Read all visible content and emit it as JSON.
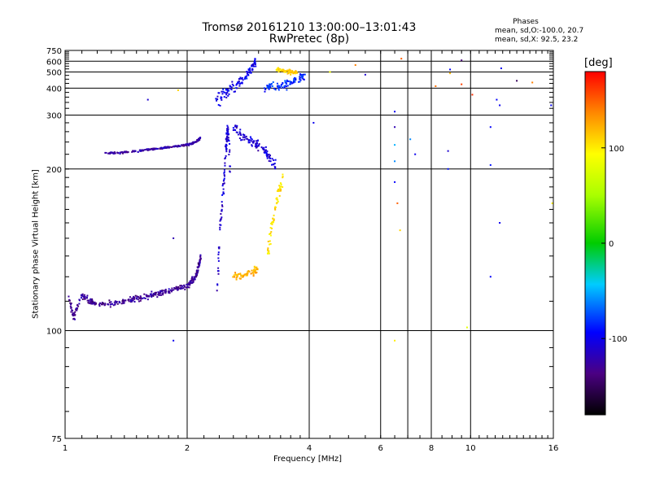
{
  "header": {
    "title_line1": "Tromsø 20161210 13:00:00–13:01:43",
    "title_line2": "RwPretec (8p)",
    "phases_heading": "Phases",
    "phases_line1": "mean, sd,O:-100.0, 20.7",
    "phases_line2": "mean, sd,X:  92.5, 23.2"
  },
  "colorbar": {
    "label": "[deg]",
    "min": -180,
    "max": 180,
    "ticks": [
      100,
      0,
      -100
    ],
    "tick_labels": [
      "100",
      "0",
      "-100"
    ]
  },
  "chart_data": {
    "type": "scatter",
    "title": "Tromsø 20161210 13:00:00–13:01:43",
    "subtitle": "RwPretec (8p)",
    "xlabel": "Frequency [MHz]",
    "ylabel": "Stationary phase Virtual Height [km]",
    "x_scale": "log",
    "y_scale": "reciprocal",
    "xlim": [
      1,
      16
    ],
    "ylim": [
      75,
      750
    ],
    "x_ticks": [
      1,
      2,
      4,
      6,
      8,
      10,
      16
    ],
    "x_tick_labels": [
      "1",
      "2",
      "4",
      "6",
      "8",
      "10",
      "16"
    ],
    "y_ticks": [
      75,
      100,
      200,
      300,
      400,
      500,
      600,
      750
    ],
    "y_tick_labels": [
      "75",
      "100",
      "200",
      "300",
      "400",
      "500",
      "600",
      "750"
    ],
    "grid": true,
    "color_by": "phase [deg]",
    "traces": [
      {
        "x": [
          1.02,
          1.05,
          1.1,
          1.15,
          1.2,
          1.3,
          1.4,
          1.5,
          1.6,
          1.7,
          1.8,
          1.9,
          2.0,
          2.05,
          2.1,
          2.13,
          2.16
        ],
        "y": [
          112,
          104,
          112,
          110,
          109,
          109,
          110,
          111,
          112,
          113,
          114,
          115,
          116,
          118,
          120,
          124,
          130
        ],
        "phase": -130,
        "spread_y": 0.015
      },
      {
        "x": [
          1.25,
          1.35,
          1.45,
          1.55,
          1.65,
          1.75,
          1.85,
          1.95,
          2.05,
          2.12,
          2.16
        ],
        "y": [
          222,
          222,
          224,
          226,
          228,
          230,
          232,
          234,
          237,
          242,
          248
        ],
        "phase": -125,
        "spread_y": 0.01
      },
      {
        "x": [
          2.37,
          2.42,
          2.47,
          2.5,
          2.52,
          2.55
        ],
        "y": [
          115,
          150,
          190,
          240,
          270,
          200
        ],
        "phase": -110,
        "spread_y": 0.06
      },
      {
        "x": [
          2.6,
          2.75,
          2.9,
          3.0,
          3.15,
          3.3
        ],
        "y": [
          270,
          250,
          240,
          235,
          220,
          205
        ],
        "phase": -110,
        "spread_y": 0.05
      },
      {
        "x": [
          2.35,
          2.5,
          2.65,
          2.8,
          2.9,
          2.95
        ],
        "y": [
          350,
          380,
          420,
          470,
          540,
          600
        ],
        "phase": -100,
        "spread_y": 0.1
      },
      {
        "x": [
          3.1,
          3.3,
          3.5,
          3.7,
          3.9
        ],
        "y": [
          400,
          410,
          420,
          440,
          470
        ],
        "phase": -85,
        "spread_y": 0.08
      },
      {
        "x": [
          3.3,
          3.45,
          3.6,
          3.75
        ],
        "y": [
          520,
          510,
          500,
          495
        ],
        "phase": 110,
        "spread_y": 0.05
      },
      {
        "x": [
          3.15,
          3.25,
          3.35,
          3.45
        ],
        "y": [
          130,
          150,
          170,
          190
        ],
        "phase": 105,
        "spread_y": 0.05
      },
      {
        "x": [
          2.6,
          2.75,
          2.9,
          3.0
        ],
        "y": [
          120,
          121,
          122,
          124
        ],
        "phase": 120,
        "spread_y": 0.02
      }
    ],
    "scattered_points": [
      {
        "x": 1.6,
        "y": 350,
        "phase": -110
      },
      {
        "x": 1.9,
        "y": 390,
        "phase": 110
      },
      {
        "x": 1.85,
        "y": 140,
        "phase": -120
      },
      {
        "x": 1.85,
        "y": 97,
        "phase": -100
      },
      {
        "x": 4.1,
        "y": 280,
        "phase": -100
      },
      {
        "x": 4.5,
        "y": 500,
        "phase": 90
      },
      {
        "x": 5.2,
        "y": 560,
        "phase": 140
      },
      {
        "x": 5.5,
        "y": 480,
        "phase": -110
      },
      {
        "x": 6.5,
        "y": 310,
        "phase": -100
      },
      {
        "x": 6.5,
        "y": 270,
        "phase": -120
      },
      {
        "x": 6.5,
        "y": 235,
        "phase": -50
      },
      {
        "x": 6.5,
        "y": 210,
        "phase": -60
      },
      {
        "x": 6.5,
        "y": 185,
        "phase": -95
      },
      {
        "x": 6.6,
        "y": 165,
        "phase": 150
      },
      {
        "x": 6.7,
        "y": 145,
        "phase": 110
      },
      {
        "x": 6.75,
        "y": 630,
        "phase": 150
      },
      {
        "x": 6.5,
        "y": 97,
        "phase": 100
      },
      {
        "x": 7.1,
        "y": 245,
        "phase": -60
      },
      {
        "x": 7.3,
        "y": 220,
        "phase": -100
      },
      {
        "x": 8.2,
        "y": 410,
        "phase": 145
      },
      {
        "x": 8.8,
        "y": 225,
        "phase": -110
      },
      {
        "x": 8.8,
        "y": 200,
        "phase": -90
      },
      {
        "x": 8.9,
        "y": 520,
        "phase": -95
      },
      {
        "x": 8.9,
        "y": 490,
        "phase": 120
      },
      {
        "x": 9.5,
        "y": 610,
        "phase": -140
      },
      {
        "x": 9.5,
        "y": 420,
        "phase": 160
      },
      {
        "x": 9.8,
        "y": 101,
        "phase": 80
      },
      {
        "x": 10.1,
        "y": 370,
        "phase": 165
      },
      {
        "x": 11.2,
        "y": 270,
        "phase": -95
      },
      {
        "x": 11.2,
        "y": 205,
        "phase": -90
      },
      {
        "x": 11.2,
        "y": 120,
        "phase": -95
      },
      {
        "x": 11.6,
        "y": 350,
        "phase": -95
      },
      {
        "x": 11.8,
        "y": 330,
        "phase": -100
      },
      {
        "x": 11.8,
        "y": 150,
        "phase": -100
      },
      {
        "x": 11.9,
        "y": 530,
        "phase": -100
      },
      {
        "x": 13.0,
        "y": 440,
        "phase": -150
      },
      {
        "x": 14.2,
        "y": 430,
        "phase": 140
      },
      {
        "x": 15.8,
        "y": 330,
        "phase": -95
      },
      {
        "x": 15.9,
        "y": 165,
        "phase": 100
      }
    ]
  }
}
